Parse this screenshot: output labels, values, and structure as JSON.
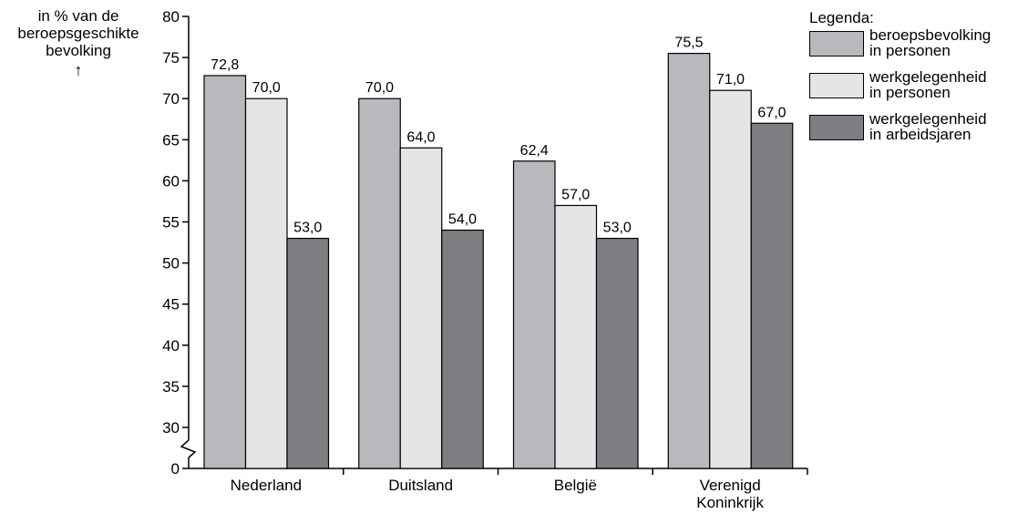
{
  "chart_data": {
    "type": "bar",
    "ylabel_lines": [
      "in % van de",
      "beroepsgeschikte",
      "bevolking"
    ],
    "ylabel_arrow": "↑",
    "categories": [
      [
        "Nederland"
      ],
      [
        "Duitsland"
      ],
      [
        "België"
      ],
      [
        "Verenigd",
        "Koninkrijk"
      ]
    ],
    "series": [
      {
        "name": "beroepsbevolking in personen",
        "name_lines": [
          "beroepsbevolking",
          "in personen"
        ],
        "color": "#b8b9bd",
        "values": [
          72.8,
          70.0,
          62.4,
          75.5
        ],
        "labels": [
          "72,8",
          "70,0",
          "62,4",
          "75,5"
        ]
      },
      {
        "name": "werkgelegenheid in personen",
        "name_lines": [
          "werkgelegenheid",
          "in personen"
        ],
        "color": "#e4e5e7",
        "values": [
          70.0,
          64.0,
          57.0,
          71.0
        ],
        "labels": [
          "70,0",
          "64,0",
          "57,0",
          "71,0"
        ]
      },
      {
        "name": "werkgelegenheid in arbeidsjaren",
        "name_lines": [
          "werkgelegenheid",
          "in arbeidsjaren"
        ],
        "color": "#7d7e82",
        "values": [
          53.0,
          54.0,
          53.0,
          67.0
        ],
        "labels": [
          "53,0",
          "54,0",
          "53,0",
          "67,0"
        ]
      }
    ],
    "yticks": [
      0,
      30,
      35,
      40,
      45,
      50,
      55,
      60,
      65,
      70,
      75,
      80
    ],
    "ylim": [
      0,
      80
    ],
    "axis_break": true,
    "legend_title": "Legenda:",
    "legend_position": "top-right",
    "grid": false
  }
}
